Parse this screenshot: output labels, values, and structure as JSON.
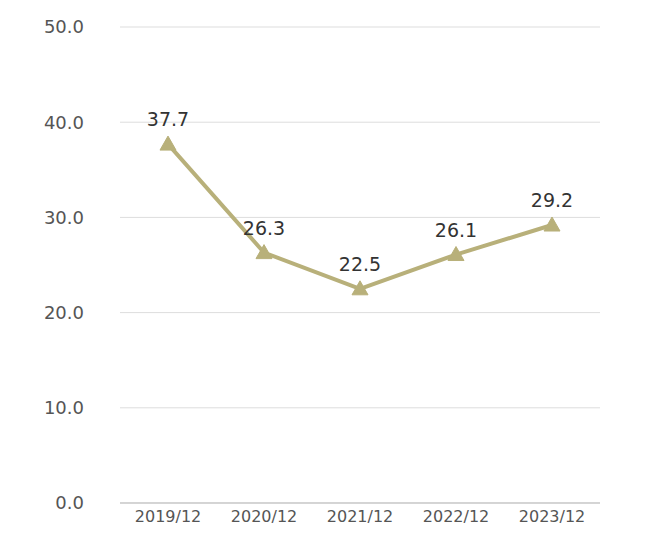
{
  "chart_data": {
    "type": "line",
    "categories": [
      "2019/12",
      "2020/12",
      "2021/12",
      "2022/12",
      "2023/12"
    ],
    "values": [
      37.7,
      26.3,
      22.5,
      26.1,
      29.2
    ],
    "color": "#b8b07a",
    "marker": "triangle",
    "ylim": [
      0,
      50
    ],
    "yticks": [
      {
        "value": 0,
        "label": "0.0"
      },
      {
        "value": 10,
        "label": "10.0"
      },
      {
        "value": 20,
        "label": "20.0"
      },
      {
        "value": 30,
        "label": "30.0"
      },
      {
        "value": 40,
        "label": "40.0"
      },
      {
        "value": 50,
        "label": "50.0"
      }
    ],
    "grid": true,
    "data_labels": true
  }
}
